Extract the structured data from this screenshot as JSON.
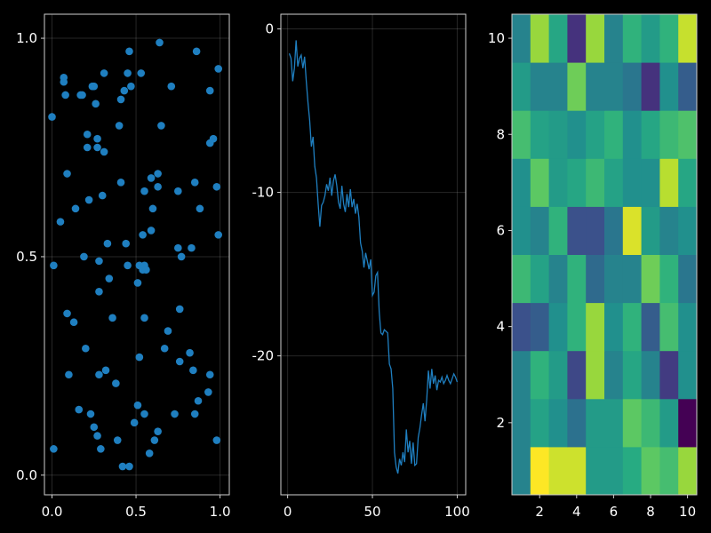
{
  "chart_data": [
    {
      "type": "scatter",
      "xlim": [
        -0.045,
        1.055
      ],
      "ylim": [
        -0.045,
        1.055
      ],
      "xticks": [
        0.0,
        0.5,
        1.0
      ],
      "xtick_labels": [
        "0.0",
        "0.5",
        "1.0"
      ],
      "yticks": [
        0.0,
        0.5,
        1.0
      ],
      "ytick_labels": [
        "0.0",
        "0.5",
        "1.0"
      ],
      "grid": true,
      "color": "#1f7fc0",
      "points": [
        [
          0.0,
          0.82
        ],
        [
          0.01,
          0.48
        ],
        [
          0.01,
          0.06
        ],
        [
          0.05,
          0.58
        ],
        [
          0.07,
          0.91
        ],
        [
          0.07,
          0.9
        ],
        [
          0.08,
          0.87
        ],
        [
          0.09,
          0.69
        ],
        [
          0.09,
          0.37
        ],
        [
          0.1,
          0.23
        ],
        [
          0.13,
          0.35
        ],
        [
          0.14,
          0.61
        ],
        [
          0.16,
          0.15
        ],
        [
          0.17,
          0.87
        ],
        [
          0.18,
          0.87
        ],
        [
          0.19,
          0.5
        ],
        [
          0.2,
          0.29
        ],
        [
          0.21,
          0.75
        ],
        [
          0.21,
          0.78
        ],
        [
          0.22,
          0.63
        ],
        [
          0.23,
          0.14
        ],
        [
          0.24,
          0.89
        ],
        [
          0.25,
          0.11
        ],
        [
          0.25,
          0.89
        ],
        [
          0.26,
          0.85
        ],
        [
          0.27,
          0.09
        ],
        [
          0.27,
          0.77
        ],
        [
          0.27,
          0.75
        ],
        [
          0.28,
          0.49
        ],
        [
          0.28,
          0.42
        ],
        [
          0.28,
          0.23
        ],
        [
          0.29,
          0.06
        ],
        [
          0.3,
          0.64
        ],
        [
          0.31,
          0.74
        ],
        [
          0.31,
          0.92
        ],
        [
          0.32,
          0.24
        ],
        [
          0.33,
          0.53
        ],
        [
          0.34,
          0.45
        ],
        [
          0.36,
          0.36
        ],
        [
          0.38,
          0.21
        ],
        [
          0.39,
          0.08
        ],
        [
          0.4,
          0.8
        ],
        [
          0.41,
          0.67
        ],
        [
          0.41,
          0.86
        ],
        [
          0.42,
          0.02
        ],
        [
          0.43,
          0.88
        ],
        [
          0.44,
          0.53
        ],
        [
          0.45,
          0.48
        ],
        [
          0.45,
          0.92
        ],
        [
          0.46,
          0.02
        ],
        [
          0.46,
          0.97
        ],
        [
          0.47,
          0.89
        ],
        [
          0.49,
          0.12
        ],
        [
          0.51,
          0.16
        ],
        [
          0.51,
          0.44
        ],
        [
          0.52,
          0.27
        ],
        [
          0.52,
          0.48
        ],
        [
          0.53,
          0.92
        ],
        [
          0.54,
          0.55
        ],
        [
          0.54,
          0.47
        ],
        [
          0.55,
          0.48
        ],
        [
          0.55,
          0.65
        ],
        [
          0.55,
          0.36
        ],
        [
          0.55,
          0.14
        ],
        [
          0.56,
          0.47
        ],
        [
          0.58,
          0.05
        ],
        [
          0.59,
          0.68
        ],
        [
          0.59,
          0.56
        ],
        [
          0.6,
          0.61
        ],
        [
          0.61,
          0.08
        ],
        [
          0.63,
          0.69
        ],
        [
          0.63,
          0.66
        ],
        [
          0.63,
          0.1
        ],
        [
          0.64,
          0.99
        ],
        [
          0.65,
          0.8
        ],
        [
          0.67,
          0.29
        ],
        [
          0.69,
          0.33
        ],
        [
          0.71,
          0.89
        ],
        [
          0.73,
          0.14
        ],
        [
          0.75,
          0.65
        ],
        [
          0.75,
          0.52
        ],
        [
          0.76,
          0.26
        ],
        [
          0.76,
          0.38
        ],
        [
          0.77,
          0.5
        ],
        [
          0.82,
          0.28
        ],
        [
          0.83,
          0.52
        ],
        [
          0.84,
          0.24
        ],
        [
          0.85,
          0.67
        ],
        [
          0.85,
          0.14
        ],
        [
          0.86,
          0.97
        ],
        [
          0.87,
          0.17
        ],
        [
          0.88,
          0.61
        ],
        [
          0.93,
          0.19
        ],
        [
          0.94,
          0.76
        ],
        [
          0.94,
          0.88
        ],
        [
          0.94,
          0.23
        ],
        [
          0.96,
          0.77
        ],
        [
          0.98,
          0.66
        ],
        [
          0.98,
          0.08
        ],
        [
          0.99,
          0.55
        ],
        [
          0.99,
          0.93
        ]
      ]
    },
    {
      "type": "line",
      "xlim": [
        -4,
        105
      ],
      "ylim": [
        -28.5,
        0.9
      ],
      "xticks": [
        0,
        50,
        100
      ],
      "xtick_labels": [
        "0",
        "50",
        "100"
      ],
      "yticks": [
        0,
        -10,
        -20
      ],
      "ytick_labels": [
        "0",
        "-10",
        "-20"
      ],
      "grid": true,
      "color": "#1f7fc0",
      "y": [
        -1.5,
        -1.8,
        -3.2,
        -2.4,
        -0.7,
        -2.3,
        -1.8,
        -1.6,
        -2.4,
        -1.7,
        -3.2,
        -4.5,
        -5.6,
        -7.2,
        -6.6,
        -8.4,
        -9.1,
        -10.7,
        -12.1,
        -10.8,
        -10.6,
        -10.2,
        -9.5,
        -9.9,
        -9.1,
        -10.2,
        -9.3,
        -8.9,
        -9.6,
        -10.6,
        -11.0,
        -9.6,
        -10.7,
        -11.2,
        -10.1,
        -10.9,
        -9.8,
        -10.9,
        -10.4,
        -11.3,
        -10.7,
        -11.5,
        -13.1,
        -13.6,
        -14.6,
        -13.7,
        -14.2,
        -14.7,
        -14.1,
        -16.3,
        -16.1,
        -15.1,
        -14.9,
        -17.3,
        -18.6,
        -18.7,
        -18.4,
        -18.5,
        -18.6,
        -20.5,
        -20.8,
        -22.0,
        -25.9,
        -26.8,
        -27.2,
        -26.3,
        -26.7,
        -25.9,
        -26.5,
        -24.5,
        -25.9,
        -25.2,
        -26.6,
        -25.3,
        -26.7,
        -26.6,
        -25.0,
        -24.4,
        -23.6,
        -22.9,
        -24.0,
        -22.7,
        -20.9,
        -22.0,
        -20.8,
        -21.7,
        -21.2,
        -22.1,
        -21.5,
        -21.6,
        -21.3,
        -21.7,
        -21.5,
        -21.2,
        -21.5,
        -21.7,
        -21.4,
        -21.1,
        -21.3,
        -21.6
      ]
    },
    {
      "type": "heatmap",
      "xlim": [
        0.5,
        10.5
      ],
      "ylim": [
        0.5,
        10.5
      ],
      "xticks": [
        2,
        4,
        6,
        8,
        10
      ],
      "xtick_labels": [
        "2",
        "4",
        "6",
        "8",
        "10"
      ],
      "yticks": [
        2,
        4,
        6,
        8,
        10
      ],
      "ytick_labels": [
        "2",
        "4",
        "6",
        "8",
        "10"
      ],
      "colormap": "viridis",
      "values": [
        [
          0.45,
          1.0,
          0.93,
          0.93,
          0.55,
          0.55,
          0.62,
          0.75,
          0.7,
          0.85
        ],
        [
          0.45,
          0.58,
          0.5,
          0.38,
          0.55,
          0.55,
          0.75,
          0.68,
          0.55,
          0.0
        ],
        [
          0.45,
          0.65,
          0.55,
          0.22,
          0.85,
          0.45,
          0.6,
          0.45,
          0.18,
          0.5
        ],
        [
          0.25,
          0.3,
          0.5,
          0.65,
          0.85,
          0.5,
          0.65,
          0.3,
          0.7,
          0.5
        ],
        [
          0.68,
          0.58,
          0.45,
          0.65,
          0.35,
          0.45,
          0.45,
          0.78,
          0.65,
          0.4
        ],
        [
          0.5,
          0.45,
          0.65,
          0.25,
          0.25,
          0.4,
          0.95,
          0.55,
          0.45,
          0.5
        ],
        [
          0.5,
          0.75,
          0.55,
          0.6,
          0.68,
          0.58,
          0.5,
          0.5,
          0.9,
          0.6
        ],
        [
          0.7,
          0.58,
          0.55,
          0.5,
          0.58,
          0.65,
          0.5,
          0.6,
          0.68,
          0.72
        ],
        [
          0.55,
          0.45,
          0.45,
          0.78,
          0.45,
          0.45,
          0.4,
          0.15,
          0.5,
          0.3
        ],
        [
          0.45,
          0.85,
          0.6,
          0.15,
          0.85,
          0.45,
          0.65,
          0.55,
          0.65,
          0.92
        ]
      ]
    }
  ]
}
